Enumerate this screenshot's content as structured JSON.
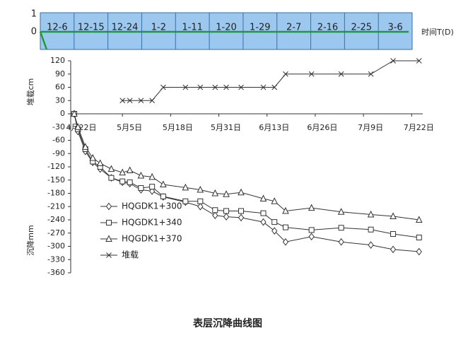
{
  "top_strip": {
    "y_labels": [
      "1",
      "0"
    ],
    "dates": [
      "12-6",
      "12-15",
      "12-24",
      "1-2",
      "1-11",
      "1-20",
      "1-29",
      "2-7",
      "2-16",
      "2-25",
      "3-6"
    ],
    "axis_label": "时间T(D)"
  },
  "chart_data": {
    "type": "line",
    "title": "表层沉降曲线图",
    "y_label_top": "堆载cm",
    "y_label_bottom": "沉降mm",
    "x": [
      0,
      1,
      3,
      5,
      7,
      10,
      13,
      15,
      18,
      21,
      24,
      30,
      34,
      38,
      41,
      45,
      51,
      54,
      57,
      64,
      72,
      80,
      86,
      93
    ],
    "xlim": [
      0,
      94
    ],
    "xticks": [
      {
        "value": 0,
        "label": "4月22日"
      },
      {
        "value": 13,
        "label": "5月5日"
      },
      {
        "value": 26,
        "label": "5月18日"
      },
      {
        "value": 39,
        "label": "5月31日"
      },
      {
        "value": 52,
        "label": "6月13日"
      },
      {
        "value": 65,
        "label": "6月26日"
      },
      {
        "value": 78,
        "label": "7月9日"
      },
      {
        "value": 91,
        "label": "7月22日"
      }
    ],
    "ylim": [
      -360,
      120
    ],
    "yticks": [
      -360,
      -330,
      -300,
      -270,
      -240,
      -210,
      -180,
      -150,
      -120,
      -90,
      -60,
      -30,
      0,
      30,
      60,
      90,
      120
    ],
    "series": [
      {
        "name": "HQGDK1+300",
        "color": "#333333",
        "marker": "diamond",
        "values": [
          0,
          -40,
          -85,
          -110,
          -125,
          -145,
          -155,
          -158,
          -172,
          -175,
          -188,
          -200,
          -210,
          -230,
          -233,
          -235,
          -245,
          -265,
          -290,
          -278,
          -290,
          -297,
          -307,
          -312
        ]
      },
      {
        "name": "HQGDK1+340",
        "color": "#333333",
        "marker": "square",
        "values": [
          0,
          -35,
          -80,
          -108,
          -120,
          -145,
          -153,
          -155,
          -168,
          -165,
          -187,
          -198,
          -198,
          -218,
          -220,
          -220,
          -225,
          -245,
          -257,
          -263,
          -258,
          -262,
          -272,
          -280
        ]
      },
      {
        "name": "HQGDK1+370",
        "color": "#333333",
        "marker": "triangle",
        "values": [
          0,
          -30,
          -75,
          -100,
          -112,
          -125,
          -133,
          -128,
          -140,
          -143,
          -160,
          -167,
          -172,
          -180,
          -182,
          -178,
          -192,
          -198,
          -220,
          -213,
          -222,
          -228,
          -232,
          -240
        ]
      },
      {
        "name": "堆载",
        "color": "#333333",
        "marker": "x",
        "values": [
          null,
          null,
          null,
          null,
          null,
          null,
          30,
          30,
          30,
          30,
          60,
          60,
          60,
          60,
          60,
          60,
          60,
          60,
          90,
          90,
          90,
          90,
          120,
          120
        ]
      }
    ]
  }
}
